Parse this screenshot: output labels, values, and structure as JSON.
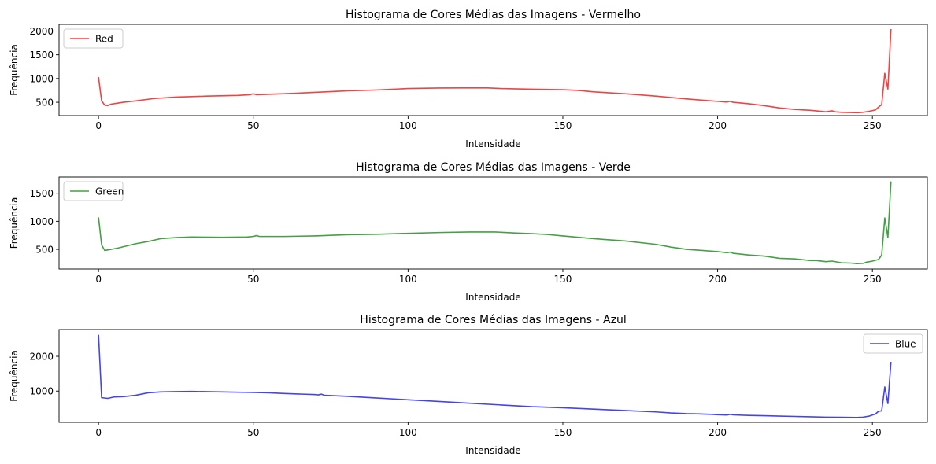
{
  "chart_data": [
    {
      "type": "line",
      "title": "Histograma de Cores Médias das Imagens - Vermelho",
      "xlabel": "Intensidade",
      "ylabel": "Frequência",
      "xlim": [
        -12.75,
        267.75
      ],
      "ylim": [
        220,
        2140
      ],
      "xticks": [
        0,
        50,
        100,
        150,
        200,
        250
      ],
      "yticks": [
        500,
        1000,
        1500,
        2000
      ],
      "legend_loc": "upper-left",
      "grid": false,
      "series": [
        {
          "name": "Red",
          "color": "#ee4444",
          "points": [
            [
              0,
              1030
            ],
            [
              1,
              530
            ],
            [
              2,
              440
            ],
            [
              3,
              430
            ],
            [
              4,
              460
            ],
            [
              6,
              480
            ],
            [
              8,
              500
            ],
            [
              12,
              530
            ],
            [
              18,
              580
            ],
            [
              25,
              610
            ],
            [
              35,
              630
            ],
            [
              45,
              645
            ],
            [
              49,
              660
            ],
            [
              50,
              680
            ],
            [
              51,
              660
            ],
            [
              60,
              680
            ],
            [
              70,
              710
            ],
            [
              80,
              740
            ],
            [
              90,
              760
            ],
            [
              100,
              790
            ],
            [
              110,
              800
            ],
            [
              125,
              805
            ],
            [
              130,
              790
            ],
            [
              140,
              775
            ],
            [
              150,
              765
            ],
            [
              155,
              750
            ],
            [
              160,
              720
            ],
            [
              170,
              680
            ],
            [
              180,
              630
            ],
            [
              190,
              570
            ],
            [
              200,
              520
            ],
            [
              203,
              505
            ],
            [
              204,
              520
            ],
            [
              205,
              500
            ],
            [
              210,
              470
            ],
            [
              215,
              430
            ],
            [
              220,
              380
            ],
            [
              225,
              350
            ],
            [
              230,
              330
            ],
            [
              235,
              300
            ],
            [
              237,
              320
            ],
            [
              238,
              300
            ],
            [
              240,
              290
            ],
            [
              243,
              285
            ],
            [
              245,
              280
            ],
            [
              247,
              290
            ],
            [
              249,
              310
            ],
            [
              251,
              340
            ],
            [
              252,
              400
            ],
            [
              253,
              450
            ],
            [
              254,
              1110
            ],
            [
              255,
              780
            ],
            [
              256,
              2040
            ]
          ]
        }
      ]
    },
    {
      "type": "line",
      "title": "Histograma de Cores Médias das Imagens - Verde",
      "xlabel": "Intensidade",
      "ylabel": "Frequência",
      "xlim": [
        -12.75,
        267.75
      ],
      "ylim": [
        150,
        1790
      ],
      "xticks": [
        0,
        50,
        100,
        150,
        200,
        250
      ],
      "yticks": [
        500,
        1000,
        1500
      ],
      "legend_loc": "upper-left",
      "grid": false,
      "series": [
        {
          "name": "Green",
          "color": "#44a044",
          "points": [
            [
              0,
              1070
            ],
            [
              1,
              580
            ],
            [
              2,
              480
            ],
            [
              4,
              500
            ],
            [
              6,
              520
            ],
            [
              9,
              560
            ],
            [
              12,
              600
            ],
            [
              16,
              640
            ],
            [
              20,
              690
            ],
            [
              25,
              710
            ],
            [
              30,
              720
            ],
            [
              40,
              715
            ],
            [
              48,
              720
            ],
            [
              50,
              730
            ],
            [
              51,
              745
            ],
            [
              52,
              730
            ],
            [
              60,
              730
            ],
            [
              70,
              740
            ],
            [
              80,
              760
            ],
            [
              90,
              770
            ],
            [
              100,
              785
            ],
            [
              110,
              800
            ],
            [
              120,
              810
            ],
            [
              128,
              810
            ],
            [
              130,
              805
            ],
            [
              135,
              790
            ],
            [
              140,
              780
            ],
            [
              145,
              765
            ],
            [
              150,
              740
            ],
            [
              155,
              715
            ],
            [
              160,
              690
            ],
            [
              170,
              650
            ],
            [
              180,
              590
            ],
            [
              185,
              540
            ],
            [
              190,
              500
            ],
            [
              195,
              480
            ],
            [
              200,
              460
            ],
            [
              203,
              440
            ],
            [
              204,
              450
            ],
            [
              205,
              430
            ],
            [
              210,
              400
            ],
            [
              215,
              380
            ],
            [
              220,
              340
            ],
            [
              225,
              330
            ],
            [
              230,
              300
            ],
            [
              232,
              300
            ],
            [
              235,
              280
            ],
            [
              237,
              290
            ],
            [
              240,
              260
            ],
            [
              243,
              255
            ],
            [
              245,
              245
            ],
            [
              247,
              250
            ],
            [
              248,
              270
            ],
            [
              250,
              290
            ],
            [
              252,
              320
            ],
            [
              253,
              400
            ],
            [
              254,
              1060
            ],
            [
              255,
              710
            ],
            [
              256,
              1710
            ]
          ]
        }
      ]
    },
    {
      "type": "line",
      "title": "Histograma de Cores Médias das Imagens - Azul",
      "xlabel": "Intensidade",
      "ylabel": "Frequência",
      "xlim": [
        -12.75,
        267.75
      ],
      "ylim": [
        100,
        2770
      ],
      "xticks": [
        0,
        50,
        100,
        150,
        200,
        250
      ],
      "yticks": [
        1000,
        2000
      ],
      "legend_loc": "upper-right",
      "grid": false,
      "series": [
        {
          "name": "Blue",
          "color": "#4444ee",
          "points": [
            [
              0,
              2620
            ],
            [
              1,
              810
            ],
            [
              3,
              790
            ],
            [
              5,
              830
            ],
            [
              8,
              840
            ],
            [
              12,
              880
            ],
            [
              16,
              950
            ],
            [
              20,
              975
            ],
            [
              25,
              985
            ],
            [
              30,
              990
            ],
            [
              40,
              975
            ],
            [
              50,
              960
            ],
            [
              55,
              950
            ],
            [
              60,
              930
            ],
            [
              70,
              900
            ],
            [
              71,
              890
            ],
            [
              72,
              910
            ],
            [
              73,
              880
            ],
            [
              80,
              850
            ],
            [
              90,
              800
            ],
            [
              100,
              750
            ],
            [
              110,
              700
            ],
            [
              120,
              650
            ],
            [
              130,
              600
            ],
            [
              140,
              550
            ],
            [
              150,
              520
            ],
            [
              160,
              480
            ],
            [
              170,
              440
            ],
            [
              180,
              400
            ],
            [
              185,
              370
            ],
            [
              190,
              350
            ],
            [
              195,
              340
            ],
            [
              198,
              330
            ],
            [
              200,
              320
            ],
            [
              203,
              310
            ],
            [
              204,
              330
            ],
            [
              205,
              315
            ],
            [
              210,
              300
            ],
            [
              215,
              290
            ],
            [
              220,
              280
            ],
            [
              225,
              270
            ],
            [
              230,
              260
            ],
            [
              235,
              250
            ],
            [
              240,
              245
            ],
            [
              245,
              240
            ],
            [
              247,
              250
            ],
            [
              249,
              280
            ],
            [
              251,
              340
            ],
            [
              252,
              420
            ],
            [
              253,
              430
            ],
            [
              254,
              1120
            ],
            [
              255,
              640
            ],
            [
              256,
              1840
            ]
          ]
        }
      ]
    }
  ]
}
